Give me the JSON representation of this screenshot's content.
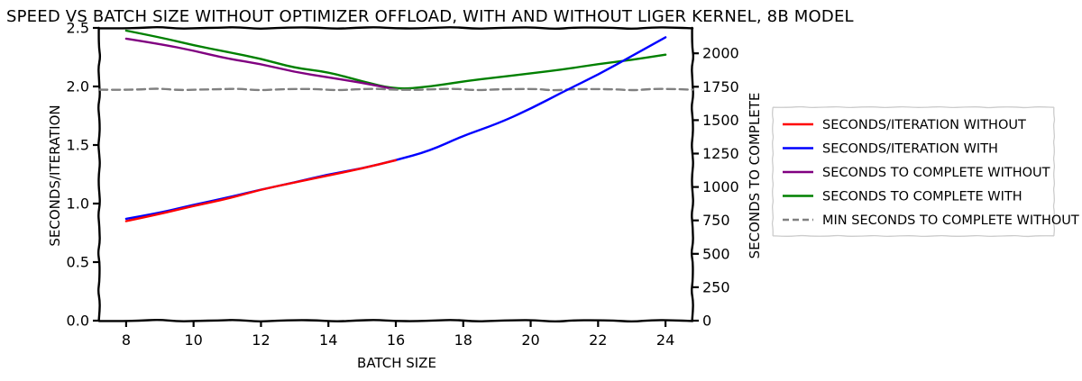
{
  "chart_data": {
    "type": "line",
    "title": "SPEED VS BATCH SIZE WITHOUT OPTIMIZER OFFLOAD, WITH AND WITHOUT LIGER KERNEL, 8B MODEL",
    "xlabel": "BATCH SIZE",
    "ylabel": "SECONDS/ITERATION",
    "y2label": "SECONDS TO COMPLETE",
    "xlim": [
      7.2,
      24.8
    ],
    "ylim": [
      0,
      2.5
    ],
    "y2lim": [
      0,
      2190
    ],
    "xticks": [
      8,
      10,
      12,
      14,
      16,
      18,
      20,
      22,
      24
    ],
    "xtick_labels": [
      "8",
      "10",
      "12",
      "14",
      "16",
      "18",
      "20",
      "22",
      "24"
    ],
    "yticks": [
      0.0,
      0.5,
      1.0,
      1.5,
      2.0,
      2.5
    ],
    "ytick_labels": [
      "0.0",
      "0.5",
      "1.0",
      "1.5",
      "2.0",
      "2.5"
    ],
    "y2ticks": [
      0,
      250,
      500,
      750,
      1000,
      1250,
      1500,
      1750,
      2000
    ],
    "y2tick_labels": [
      "0",
      "250",
      "500",
      "750",
      "1000",
      "1250",
      "1500",
      "1750",
      "2000"
    ],
    "grid": false,
    "legend_position": "outside-right",
    "style": "xkcd",
    "series": [
      {
        "name": "SECONDS/ITERATION WITHOUT",
        "axis": "left",
        "color": "#ff0000",
        "dash": "solid",
        "x": [
          8,
          9,
          10,
          11,
          12,
          13,
          14,
          15,
          16
        ],
        "values": [
          0.85,
          0.91,
          0.98,
          1.04,
          1.12,
          1.18,
          1.24,
          1.3,
          1.37
        ]
      },
      {
        "name": "SECONDS/ITERATION WITH",
        "axis": "left",
        "color": "#0000ff",
        "dash": "solid",
        "x": [
          8,
          9,
          10,
          11,
          12,
          13,
          14,
          15,
          16,
          17,
          18,
          19,
          20,
          21,
          22,
          23,
          24
        ],
        "values": [
          0.87,
          0.92,
          0.99,
          1.05,
          1.12,
          1.18,
          1.25,
          1.3,
          1.37,
          1.45,
          1.58,
          1.68,
          1.81,
          1.96,
          2.1,
          2.26,
          2.42
        ]
      },
      {
        "name": "SECONDS TO COMPLETE WITHOUT",
        "axis": "right",
        "color": "#800080",
        "dash": "solid",
        "x": [
          8,
          9,
          10,
          11,
          12,
          13,
          14,
          15,
          16
        ],
        "values": [
          2110,
          2070,
          2020,
          1960,
          1920,
          1860,
          1820,
          1780,
          1730
        ]
      },
      {
        "name": "SECONDS TO COMPLETE WITH",
        "axis": "right",
        "color": "#008000",
        "dash": "solid",
        "x": [
          8,
          9,
          10,
          11,
          12,
          13,
          14,
          15,
          16,
          17,
          18,
          19,
          20,
          21,
          22,
          23,
          24
        ],
        "values": [
          2170,
          2120,
          2060,
          2010,
          1960,
          1890,
          1860,
          1790,
          1730,
          1750,
          1790,
          1820,
          1850,
          1880,
          1920,
          1950,
          1990
        ]
      },
      {
        "name": "MIN SECONDS TO COMPLETE WITHOUT",
        "axis": "right",
        "color": "#808080",
        "dash": "dashed",
        "x": [
          7.2,
          24.8
        ],
        "values": [
          1730,
          1730
        ]
      }
    ]
  }
}
